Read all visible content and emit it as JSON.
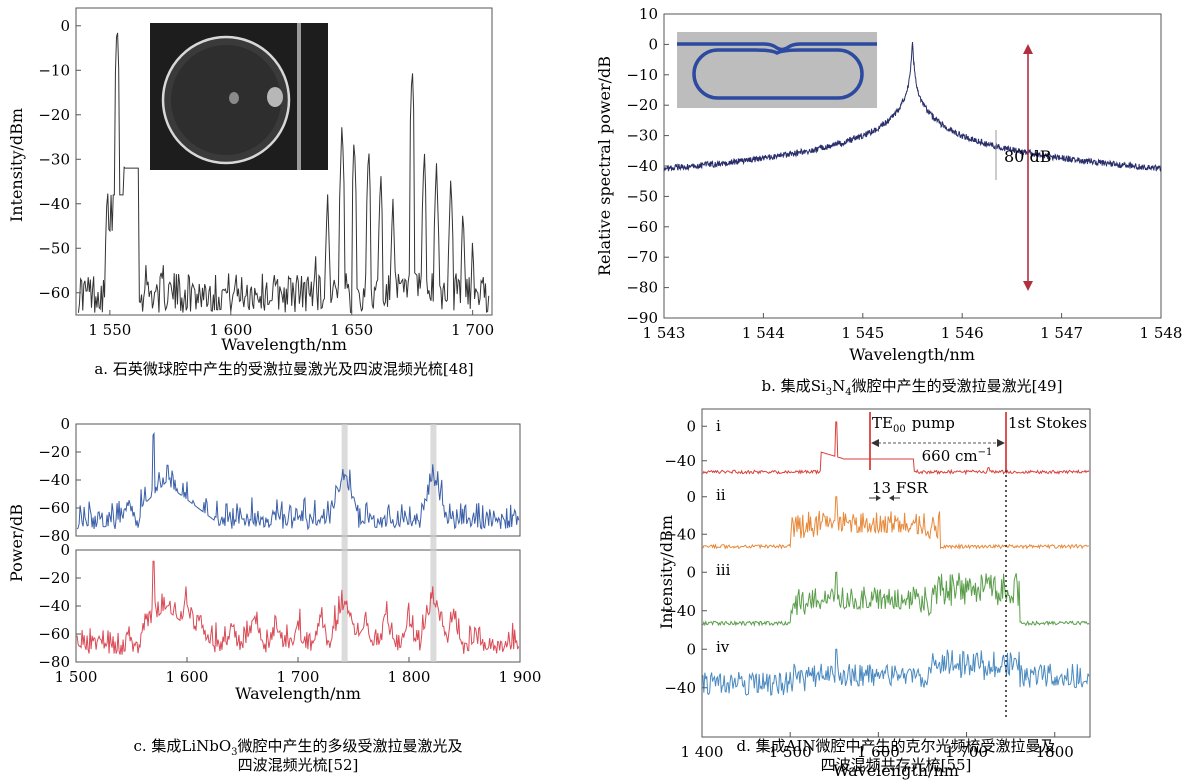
{
  "chart_data": [
    {
      "type": "line",
      "id": "a",
      "xlabel": "Wavelength/nm",
      "ylabel": "Intensity/dBm",
      "xlim": [
        1536,
        1708
      ],
      "ylim": [
        -65,
        4
      ],
      "xticks": [
        1550,
        1600,
        1650,
        1700
      ],
      "xtick_labels": [
        "1 550",
        "1 600",
        "1 650",
        "1 700"
      ],
      "yticks": [
        0,
        -10,
        -20,
        -30,
        -40,
        -50,
        -60
      ],
      "ytick_labels": [
        "0",
        "−10",
        "−20",
        "−30",
        "−40",
        "−50",
        "−60"
      ],
      "peaks": [
        {
          "x": 1549,
          "y": -35
        },
        {
          "x": 1550.5,
          "y": -38
        },
        {
          "x": 1553,
          "y": 2
        },
        {
          "x": 1556,
          "y": -30
        },
        {
          "x": 1558,
          "y": -30
        },
        {
          "x": 1565,
          "y": -52
        },
        {
          "x": 1572,
          "y": -52
        },
        {
          "x": 1635,
          "y": -50
        },
        {
          "x": 1640,
          "y": -37
        },
        {
          "x": 1646,
          "y": -21
        },
        {
          "x": 1651,
          "y": -24
        },
        {
          "x": 1657,
          "y": -26
        },
        {
          "x": 1662,
          "y": -32
        },
        {
          "x": 1667,
          "y": -38
        },
        {
          "x": 1675,
          "y": -8
        },
        {
          "x": 1680,
          "y": -27
        },
        {
          "x": 1685,
          "y": -30
        },
        {
          "x": 1691,
          "y": -33
        },
        {
          "x": 1696,
          "y": -40
        },
        {
          "x": 1700,
          "y": -47
        }
      ],
      "noise_floor": -60,
      "caption": "a. 石英微球腔中产生的受激拉曼激光及四波混频光梳[48]",
      "color": "#333333"
    },
    {
      "type": "line",
      "id": "b",
      "xlabel": "Wavelength/nm",
      "ylabel": "Relative spectral power/dB",
      "xlim": [
        1543,
        1548
      ],
      "ylim": [
        -90,
        10
      ],
      "xticks": [
        1543,
        1544,
        1545,
        1546,
        1547,
        1548
      ],
      "xtick_labels": [
        "1 543",
        "1 544",
        "1 545",
        "1 546",
        "1 547",
        "1 548"
      ],
      "yticks": [
        10,
        0,
        -10,
        -20,
        -30,
        -40,
        -50,
        -60,
        -70,
        -80,
        -90
      ],
      "ytick_labels": [
        "10",
        "0",
        "−10",
        "−20",
        "−30",
        "−40",
        "−50",
        "−60",
        "−70",
        "−80",
        "−90"
      ],
      "peak": {
        "x": 1545.5,
        "y": 0
      },
      "noise_floor": -86,
      "annotation": "80 dB",
      "caption_prefix": "b. 集成",
      "caption_formula": "Si3N4",
      "caption_suffix": "微腔中产生的受激拉曼激光[49]",
      "color": "#2a2f6b",
      "arrow_color": "#b03040"
    },
    {
      "type": "line",
      "id": "c",
      "xlabel": "Wavelength/nm",
      "ylabel": "Power/dB",
      "xlim": [
        1500,
        1900
      ],
      "ylim": [
        -80,
        0
      ],
      "xticks": [
        1500,
        1600,
        1700,
        1800,
        1900
      ],
      "xtick_labels": [
        "1 500",
        "1 600",
        "1 700",
        "1 800",
        "1 900"
      ],
      "yticks": [
        0,
        -20,
        -40,
        -60,
        -80
      ],
      "ytick_labels": [
        "0",
        "−20",
        "−40",
        "−60",
        "−80"
      ],
      "highlight_x": [
        1742,
        1822
      ],
      "series": [
        {
          "color": "#3a5fa8",
          "pump": 1570
        },
        {
          "color": "#d94a55",
          "pump": 1570
        }
      ],
      "caption_prefix": "c. 集成",
      "caption_formula": "LiNbO3",
      "caption_suffix": "微腔中产生的多级受激拉曼激光及",
      "caption_line2": "四波混频光梳[52]"
    },
    {
      "type": "line",
      "id": "d",
      "xlabel": "Wavelength/nm",
      "ylabel": "Intensity/dBm",
      "xlim": [
        1400,
        1840
      ],
      "ylim": [
        -80,
        20
      ],
      "xticks": [
        1400,
        1500,
        1600,
        1700,
        1800
      ],
      "xtick_labels": [
        "1 400",
        "1 500",
        "1 600",
        "1 700",
        "1800"
      ],
      "yticks": [
        0,
        -40
      ],
      "ytick_labels": [
        "0",
        "−40"
      ],
      "series": [
        {
          "label": "i",
          "color": "#d9413c"
        },
        {
          "label": "ii",
          "color": "#e8893a"
        },
        {
          "label": "iii",
          "color": "#5a9e4b"
        },
        {
          "label": "iv",
          "color": "#4a8ac0"
        }
      ],
      "pump_label": "TE",
      "pump_sub": "00",
      "pump_word": "pump",
      "stokes_label": "1st Stokes",
      "shift_label": "660 cm",
      "shift_sup": "−1",
      "fsr_label": "13 FSR",
      "caption_prefix": "d. 集成",
      "caption_formula": "AIN",
      "caption_suffix": "微腔中产生的克尔光频梳受激拉曼及",
      "caption_line2": "四波混频共存光梳[55]"
    }
  ]
}
